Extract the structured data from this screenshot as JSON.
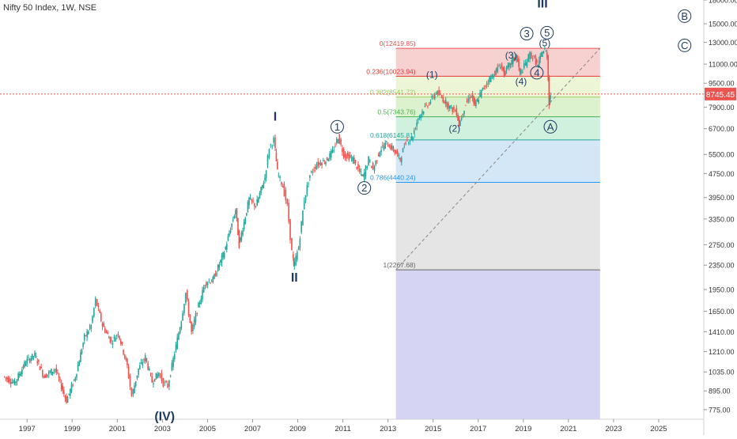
{
  "header": {
    "symbol": "Nifty 50 Index",
    "interval": "1W",
    "exchange": "NSE"
  },
  "chart_data": {
    "type": "line",
    "x_ticks": [
      "1997",
      "1999",
      "2001",
      "2003",
      "2005",
      "2007",
      "2009",
      "2011",
      "2013",
      "2015",
      "2017",
      "2019",
      "2021",
      "2023",
      "2025"
    ],
    "y_ticks": [
      "775.00",
      "895.00",
      "1035.00",
      "1210.00",
      "1410.00",
      "1650.00",
      "1950.00",
      "2350.00",
      "2750.00",
      "3350.00",
      "3950.00",
      "4750.00",
      "5500.00",
      "6700.00",
      "7900.00",
      "9500.00",
      "11000.00",
      "13000.00",
      "15000.00",
      "18000.00"
    ],
    "y_scale": "log",
    "ylim": [
      720,
      18000
    ],
    "xlim": [
      1995.8,
      2027.0
    ],
    "colors": {
      "up": "#26a69a",
      "down": "#ef5350",
      "wave": "#1f3a5f",
      "price_line": "#ef5350"
    },
    "series": [
      {
        "values": [
          [
            1996.0,
            1000
          ],
          [
            1996.5,
            950
          ],
          [
            1997.0,
            1120
          ],
          [
            1997.4,
            1180
          ],
          [
            1997.8,
            1000
          ],
          [
            1998.3,
            1060
          ],
          [
            1998.8,
            830
          ],
          [
            1999.2,
            1000
          ],
          [
            1999.6,
            1350
          ],
          [
            1999.9,
            1480
          ],
          [
            2000.1,
            1800
          ],
          [
            2000.4,
            1480
          ],
          [
            2000.8,
            1300
          ],
          [
            2001.1,
            1400
          ],
          [
            2001.5,
            1080
          ],
          [
            2001.7,
            860
          ],
          [
            2002.0,
            1060
          ],
          [
            2002.3,
            1160
          ],
          [
            2002.6,
            960
          ],
          [
            2002.9,
            1030
          ],
          [
            2003.1,
            950
          ],
          [
            2003.3,
            930
          ],
          [
            2003.6,
            1200
          ],
          [
            2003.9,
            1550
          ],
          [
            2004.1,
            1900
          ],
          [
            2004.35,
            1400
          ],
          [
            2004.6,
            1660
          ],
          [
            2004.95,
            2050
          ],
          [
            2005.3,
            2100
          ],
          [
            2005.8,
            2600
          ],
          [
            2006.3,
            3600
          ],
          [
            2006.45,
            2750
          ],
          [
            2006.9,
            3900
          ],
          [
            2007.2,
            3700
          ],
          [
            2007.6,
            4600
          ],
          [
            2007.8,
            5800
          ],
          [
            2008.0,
            6150
          ],
          [
            2008.15,
            4800
          ],
          [
            2008.4,
            4300
          ],
          [
            2008.6,
            3700
          ],
          [
            2008.8,
            2600
          ],
          [
            2008.85,
            2300
          ],
          [
            2009.1,
            2700
          ],
          [
            2009.35,
            3900
          ],
          [
            2009.6,
            4700
          ],
          [
            2009.9,
            5100
          ],
          [
            2010.3,
            5250
          ],
          [
            2010.6,
            5600
          ],
          [
            2010.85,
            6300
          ],
          [
            2011.1,
            5500
          ],
          [
            2011.5,
            5300
          ],
          [
            2011.8,
            4800
          ],
          [
            2011.95,
            4600
          ],
          [
            2012.2,
            5300
          ],
          [
            2012.4,
            4900
          ],
          [
            2012.7,
            5700
          ],
          [
            2013.0,
            6000
          ],
          [
            2013.3,
            5700
          ],
          [
            2013.6,
            5300
          ],
          [
            2013.85,
            6100
          ],
          [
            2014.1,
            6200
          ],
          [
            2014.4,
            7300
          ],
          [
            2014.7,
            7900
          ],
          [
            2014.95,
            8300
          ],
          [
            2015.2,
            8900
          ],
          [
            2015.5,
            8400
          ],
          [
            2015.8,
            7900
          ],
          [
            2016.1,
            7600
          ],
          [
            2016.2,
            6900
          ],
          [
            2016.5,
            8100
          ],
          [
            2016.75,
            8700
          ],
          [
            2016.9,
            7950
          ],
          [
            2017.2,
            8900
          ],
          [
            2017.5,
            9700
          ],
          [
            2017.8,
            10300
          ],
          [
            2018.05,
            11000
          ],
          [
            2018.2,
            10200
          ],
          [
            2018.6,
            11400
          ],
          [
            2018.75,
            11700
          ],
          [
            2018.9,
            10200
          ],
          [
            2019.1,
            10800
          ],
          [
            2019.35,
            11900
          ],
          [
            2019.55,
            11400
          ],
          [
            2019.7,
            10800
          ],
          [
            2019.85,
            11900
          ],
          [
            2020.0,
            12300
          ],
          [
            2020.1,
            11800
          ],
          [
            2020.18,
            8200
          ],
          [
            2020.22,
            8745
          ]
        ]
      }
    ],
    "fibonacci": {
      "levels": [
        {
          "label": "0(12419.85)",
          "value": 12419.85,
          "color": "#ef5350",
          "fill": "#f6c8c8"
        },
        {
          "label": "0.236(10023.94)",
          "value": 10023.94,
          "color": "#e53935",
          "fill": "#e9f5cf"
        },
        {
          "label": "0.382(8541.72)",
          "value": 8541.72,
          "color": "#9ccc65",
          "fill": "#d6f0c6"
        },
        {
          "label": "0.5(7343.76)",
          "value": 7343.76,
          "color": "#4caf50",
          "fill": "#c9efd9"
        },
        {
          "label": "0.618(6145.81)",
          "value": 6145.81,
          "color": "#26a69a",
          "fill": "#cde3f5"
        },
        {
          "label": "0.786(4440.24)",
          "value": 4440.24,
          "color": "#2196f3",
          "fill": "#e0e0e0"
        },
        {
          "label": "1(2267.68)",
          "value": 2267.68,
          "color": "#666666",
          "fill": "#cfcdf1"
        }
      ],
      "x_start": 2013.35,
      "x_end": 2022.4
    },
    "trend_line": {
      "from": [
        2013.35,
        2267.68
      ],
      "to": [
        2022.4,
        12419.85
      ]
    },
    "current_price": {
      "value": 8745.45,
      "label": "8745.45"
    },
    "wave_labels": [
      {
        "text": "I",
        "x": 2008.0,
        "y": 7400,
        "style": "roman"
      },
      {
        "text": "II",
        "x": 2008.85,
        "y": 2150,
        "style": "roman"
      },
      {
        "text": "III",
        "x": 2019.85,
        "y": 17600,
        "style": "roman"
      },
      {
        "text": "(IV)",
        "x": 2003.1,
        "y": 740,
        "style": "roman"
      },
      {
        "text": "1",
        "x": 2010.75,
        "y": 6800,
        "style": "circle"
      },
      {
        "text": "2",
        "x": 2011.95,
        "y": 4250,
        "style": "circle"
      },
      {
        "text": "3",
        "x": 2019.15,
        "y": 13900,
        "style": "circle"
      },
      {
        "text": "4",
        "x": 2019.6,
        "y": 10300,
        "style": "circle"
      },
      {
        "text": "5",
        "x": 2020.05,
        "y": 14000,
        "style": "circle"
      },
      {
        "text": "A",
        "x": 2020.2,
        "y": 6800,
        "style": "circle"
      },
      {
        "text": "B",
        "x": 2026.15,
        "y": 15900,
        "style": "circle"
      },
      {
        "text": "C",
        "x": 2026.15,
        "y": 12700,
        "style": "circle"
      },
      {
        "text": "(1)",
        "x": 2014.95,
        "y": 10200,
        "style": "paren"
      },
      {
        "text": "(2)",
        "x": 2015.95,
        "y": 6750,
        "style": "paren"
      },
      {
        "text": "(3)",
        "x": 2018.45,
        "y": 11850,
        "style": "paren"
      },
      {
        "text": "(4)",
        "x": 2018.9,
        "y": 9700,
        "style": "paren"
      },
      {
        "text": "(5)",
        "x": 2019.95,
        "y": 13000,
        "style": "paren"
      }
    ]
  }
}
